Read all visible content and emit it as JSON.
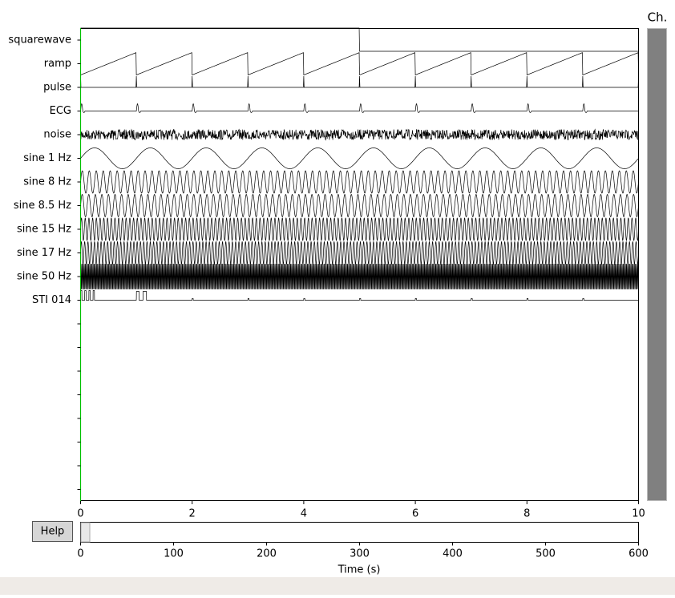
{
  "ch_label": "Ch.",
  "channels": [
    "squarewave",
    "ramp",
    "pulse",
    "ECG",
    "noise",
    "sine 1 Hz",
    "sine 8 Hz",
    "sine 8.5 Hz",
    "sine 15 Hz",
    "sine 17 Hz",
    "sine 50 Hz",
    "STI 014",
    null,
    null,
    null,
    null,
    null,
    null,
    null,
    null
  ],
  "time_axis": {
    "xlim": [
      0,
      10
    ],
    "xticks": [
      0,
      2,
      4,
      6,
      8,
      10
    ]
  },
  "overview_axis": {
    "xlim": [
      0,
      600
    ],
    "xticks": [
      0,
      100,
      200,
      300,
      400,
      500,
      600
    ],
    "xlabel": "Time (s)"
  },
  "help_button": "Help"
}
